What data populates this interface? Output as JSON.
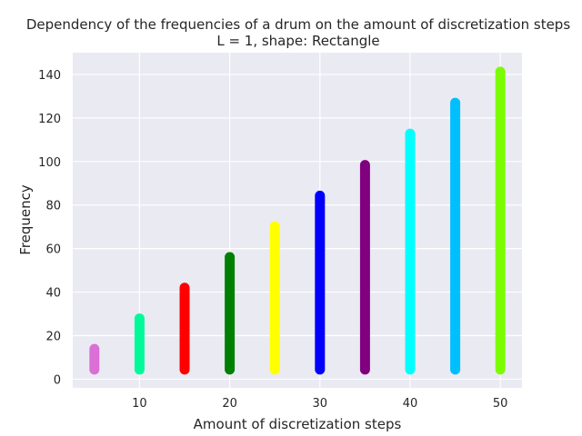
{
  "chart_data": {
    "type": "scatter",
    "title": "Dependency of the frequencies of a drum on the amount of discretization steps",
    "subtitle": "L = 1, shape: Rectangle",
    "xlabel": "Amount of discretization steps",
    "ylabel": "Frequency",
    "xlim": [
      2.6,
      52.4
    ],
    "ylim": [
      -4,
      150
    ],
    "xticks": [
      10,
      20,
      30,
      40,
      50
    ],
    "yticks": [
      0,
      20,
      40,
      60,
      80,
      100,
      120,
      140
    ],
    "grid": true,
    "series": [
      {
        "x": 5,
        "y_min": 4.4,
        "y_max": 13.9,
        "color": "#da70d6"
      },
      {
        "x": 10,
        "y_min": 4.4,
        "y_max": 27.9,
        "color": "#00fa9a"
      },
      {
        "x": 15,
        "y_min": 4.4,
        "y_max": 42.0,
        "color": "#ff0000"
      },
      {
        "x": 20,
        "y_min": 4.4,
        "y_max": 56.1,
        "color": "#008000"
      },
      {
        "x": 25,
        "y_min": 4.4,
        "y_max": 70.2,
        "color": "#ffff00"
      },
      {
        "x": 30,
        "y_min": 4.4,
        "y_max": 84.3,
        "color": "#0000ff"
      },
      {
        "x": 35,
        "y_min": 4.4,
        "y_max": 98.4,
        "color": "#800080"
      },
      {
        "x": 40,
        "y_min": 4.4,
        "y_max": 112.8,
        "color": "#00ffff"
      },
      {
        "x": 45,
        "y_min": 4.4,
        "y_max": 127.0,
        "color": "#00bfff"
      },
      {
        "x": 50,
        "y_min": 4.4,
        "y_max": 141.3,
        "color": "#7cfc00"
      }
    ]
  },
  "colors": {
    "plot_background": "#eaeaf2",
    "grid": "#ffffff",
    "text": "#262626"
  }
}
